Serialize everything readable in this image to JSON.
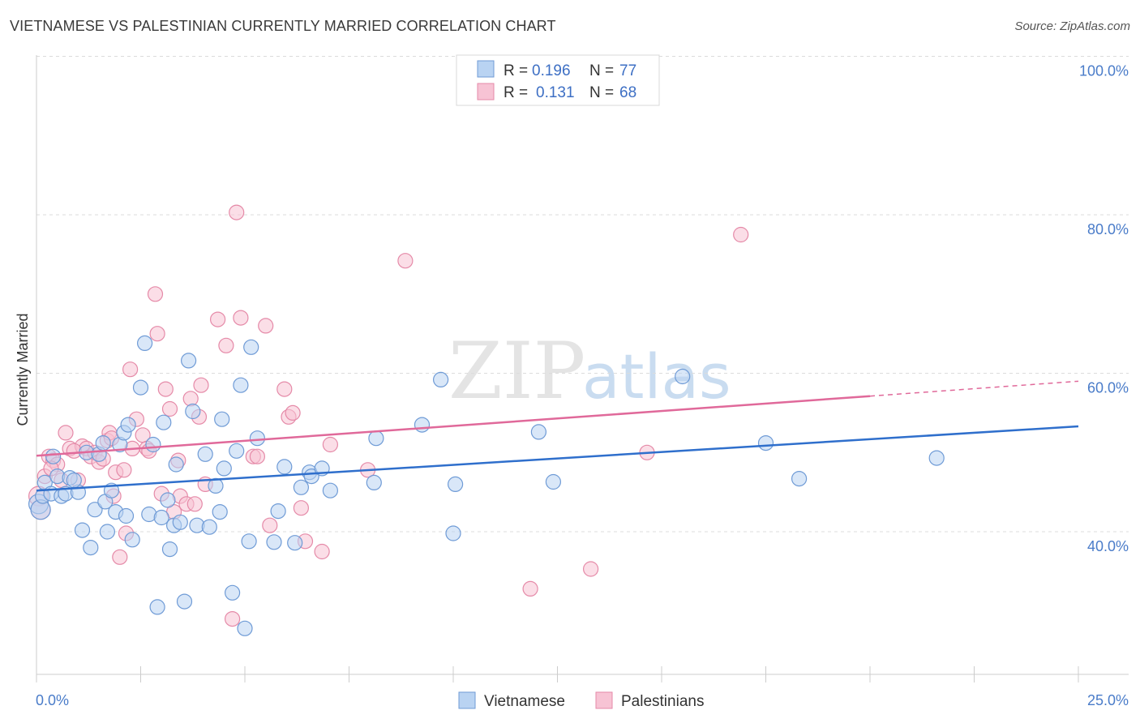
{
  "title": "VIETNAMESE VS PALESTINIAN CURRENTLY MARRIED CORRELATION CHART",
  "source": "Source: ZipAtlas.com",
  "watermark": {
    "zip": "ZIP",
    "atlas": "atlas"
  },
  "colors": {
    "blue_fill": "#b9d3f2",
    "blue_stroke": "#6f9bd6",
    "blue_line": "#2f6fcc",
    "pink_fill": "#f7c3d4",
    "pink_stroke": "#e58aa8",
    "pink_line": "#e0699a",
    "grid": "#dcdcdc",
    "axis_text": "#4a7cc9"
  },
  "legend": {
    "rows": [
      {
        "r_label": "R =",
        "r_value": "0.196",
        "n_label": "N =",
        "n_value": "77"
      },
      {
        "r_label": "R =",
        "r_value": "0.131",
        "n_label": "N =",
        "n_value": "68"
      }
    ]
  },
  "bottom_legend": [
    "Vietnamese",
    "Palestinians"
  ],
  "chart_data": {
    "type": "scatter",
    "title": "VIETNAMESE VS PALESTINIAN CURRENTLY MARRIED CORRELATION CHART",
    "xlabel": "",
    "ylabel": "Currently Married",
    "xlim": [
      0,
      25
    ],
    "ylim": [
      22,
      102
    ],
    "x_tick_labels": [
      "0.0%",
      "25.0%"
    ],
    "y_ticks": [
      40,
      60,
      80,
      100
    ],
    "y_tick_labels": [
      "40.0%",
      "60.0%",
      "80.0%",
      "100.0%"
    ],
    "legend_position": "top-center",
    "series": [
      {
        "name": "Vietnamese",
        "r": 0.196,
        "n": 77,
        "trend": {
          "x": [
            0,
            25
          ],
          "y": [
            45.2,
            53.3
          ],
          "dashed_from": null
        },
        "points": [
          [
            0.05,
            43.5
          ],
          [
            0.1,
            42.8
          ],
          [
            0.15,
            44.5
          ],
          [
            0.2,
            46.2
          ],
          [
            0.35,
            44.8
          ],
          [
            0.5,
            47.0
          ],
          [
            0.6,
            44.5
          ],
          [
            0.7,
            44.8
          ],
          [
            0.8,
            46.8
          ],
          [
            1.0,
            45.0
          ],
          [
            1.1,
            40.2
          ],
          [
            1.2,
            50.0
          ],
          [
            1.3,
            38.0
          ],
          [
            1.4,
            42.8
          ],
          [
            1.5,
            49.8
          ],
          [
            1.6,
            51.2
          ],
          [
            1.65,
            43.8
          ],
          [
            1.7,
            40.0
          ],
          [
            1.8,
            45.2
          ],
          [
            1.9,
            42.5
          ],
          [
            2.0,
            51.0
          ],
          [
            2.1,
            52.5
          ],
          [
            2.15,
            42.0
          ],
          [
            2.2,
            53.5
          ],
          [
            2.3,
            39.0
          ],
          [
            2.5,
            58.2
          ],
          [
            2.6,
            63.8
          ],
          [
            2.7,
            42.2
          ],
          [
            2.8,
            51.0
          ],
          [
            2.9,
            30.5
          ],
          [
            3.0,
            41.8
          ],
          [
            3.05,
            53.8
          ],
          [
            3.15,
            44.0
          ],
          [
            3.2,
            37.8
          ],
          [
            3.3,
            40.8
          ],
          [
            3.35,
            48.5
          ],
          [
            3.45,
            41.2
          ],
          [
            3.55,
            31.2
          ],
          [
            3.65,
            61.6
          ],
          [
            3.75,
            55.2
          ],
          [
            3.85,
            40.8
          ],
          [
            4.05,
            49.8
          ],
          [
            4.15,
            40.6
          ],
          [
            4.3,
            45.8
          ],
          [
            4.4,
            42.5
          ],
          [
            4.45,
            54.2
          ],
          [
            4.5,
            48.0
          ],
          [
            4.7,
            32.3
          ],
          [
            4.8,
            50.2
          ],
          [
            4.9,
            58.5
          ],
          [
            5.0,
            27.8
          ],
          [
            5.1,
            38.8
          ],
          [
            5.15,
            63.3
          ],
          [
            5.3,
            51.8
          ],
          [
            5.7,
            38.7
          ],
          [
            5.8,
            42.6
          ],
          [
            5.95,
            48.2
          ],
          [
            6.2,
            38.6
          ],
          [
            6.35,
            45.6
          ],
          [
            6.55,
            47.5
          ],
          [
            6.6,
            47.0
          ],
          [
            6.85,
            48.0
          ],
          [
            7.05,
            45.2
          ],
          [
            8.1,
            46.2
          ],
          [
            8.15,
            51.8
          ],
          [
            9.25,
            53.5
          ],
          [
            9.7,
            59.2
          ],
          [
            10.0,
            39.8
          ],
          [
            10.05,
            46.0
          ],
          [
            12.05,
            52.6
          ],
          [
            12.4,
            46.3
          ],
          [
            15.5,
            59.6
          ],
          [
            17.5,
            51.2
          ],
          [
            18.3,
            46.7
          ],
          [
            21.6,
            49.3
          ],
          [
            0.4,
            49.5
          ],
          [
            0.9,
            46.5
          ]
        ]
      },
      {
        "name": "Palestinians",
        "r": 0.131,
        "n": 68,
        "trend": {
          "x": [
            0,
            25
          ],
          "y": [
            49.6,
            59.0
          ],
          "dashed_from": 20.0
        },
        "points": [
          [
            0.05,
            44.5
          ],
          [
            0.1,
            42.8
          ],
          [
            0.2,
            47.0
          ],
          [
            0.3,
            49.5
          ],
          [
            0.4,
            49.0
          ],
          [
            0.5,
            48.5
          ],
          [
            0.6,
            46.5
          ],
          [
            0.7,
            52.5
          ],
          [
            0.8,
            50.5
          ],
          [
            1.0,
            46.5
          ],
          [
            1.1,
            50.8
          ],
          [
            1.2,
            50.5
          ],
          [
            1.3,
            49.5
          ],
          [
            1.4,
            50.0
          ],
          [
            1.5,
            48.8
          ],
          [
            1.6,
            49.2
          ],
          [
            1.7,
            51.5
          ],
          [
            1.75,
            52.5
          ],
          [
            1.8,
            51.8
          ],
          [
            1.85,
            44.5
          ],
          [
            1.9,
            47.5
          ],
          [
            2.0,
            36.8
          ],
          [
            2.1,
            47.8
          ],
          [
            2.15,
            39.8
          ],
          [
            2.25,
            60.5
          ],
          [
            2.3,
            50.5
          ],
          [
            2.4,
            54.2
          ],
          [
            2.55,
            52.2
          ],
          [
            2.65,
            50.5
          ],
          [
            2.7,
            50.2
          ],
          [
            2.85,
            70.0
          ],
          [
            2.9,
            65.0
          ],
          [
            3.0,
            44.8
          ],
          [
            3.1,
            58.0
          ],
          [
            3.2,
            55.5
          ],
          [
            3.3,
            42.5
          ],
          [
            3.4,
            49.0
          ],
          [
            3.45,
            44.5
          ],
          [
            3.6,
            43.5
          ],
          [
            3.7,
            56.8
          ],
          [
            3.8,
            43.5
          ],
          [
            3.9,
            54.5
          ],
          [
            3.95,
            58.5
          ],
          [
            4.05,
            46.0
          ],
          [
            4.35,
            66.8
          ],
          [
            4.55,
            63.5
          ],
          [
            4.7,
            29.0
          ],
          [
            4.8,
            80.3
          ],
          [
            4.9,
            67.0
          ],
          [
            5.2,
            49.5
          ],
          [
            5.3,
            49.5
          ],
          [
            5.5,
            66.0
          ],
          [
            5.6,
            40.8
          ],
          [
            5.95,
            58.0
          ],
          [
            6.05,
            54.5
          ],
          [
            6.15,
            55.0
          ],
          [
            6.35,
            43.0
          ],
          [
            6.45,
            38.8
          ],
          [
            6.85,
            37.5
          ],
          [
            7.05,
            51.0
          ],
          [
            7.95,
            47.8
          ],
          [
            8.85,
            74.2
          ],
          [
            11.85,
            32.8
          ],
          [
            13.3,
            35.3
          ],
          [
            14.65,
            50.0
          ],
          [
            16.9,
            77.5
          ],
          [
            0.35,
            48.0
          ],
          [
            0.9,
            50.2
          ]
        ]
      }
    ]
  }
}
